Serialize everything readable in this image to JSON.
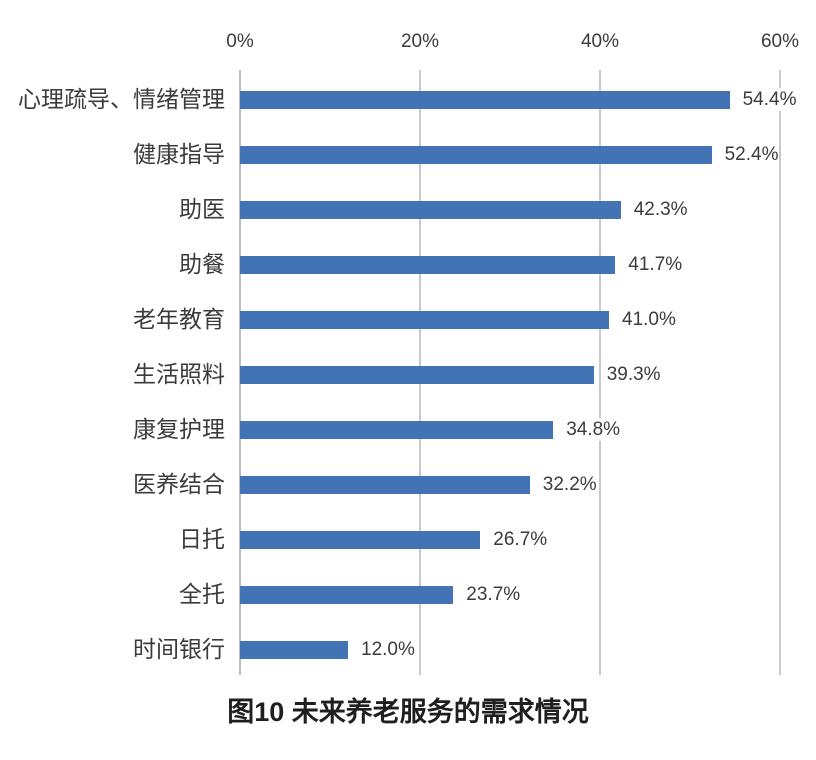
{
  "chart_data": {
    "type": "bar",
    "orientation": "horizontal",
    "title": "图10 未来养老服务的需求情况",
    "categories": [
      "心理疏导、情绪管理",
      "健康指导",
      "助医",
      "助餐",
      "老年教育",
      "生活照料",
      "康复护理",
      "医养结合",
      "日托",
      "全托",
      "时间银行"
    ],
    "values": [
      54.4,
      52.4,
      42.3,
      41.7,
      41.0,
      39.3,
      34.8,
      32.2,
      26.7,
      23.7,
      12.0
    ],
    "value_labels": [
      "54.4%",
      "52.4%",
      "42.3%",
      "41.7%",
      "41.0%",
      "39.3%",
      "34.8%",
      "32.2%",
      "26.7%",
      "23.7%",
      "12.0%"
    ],
    "x_axis": {
      "position": "top",
      "ticks": [
        "0%",
        "20%",
        "40%",
        "60%"
      ],
      "tick_values": [
        0,
        20,
        40,
        60
      ],
      "min": 0,
      "max": 60,
      "grid": true
    },
    "legend": null,
    "colors": {
      "bar": "#4273b4",
      "gridline": "#c9c9c9",
      "axis_line": "#bdbdbd",
      "label": "#3b3b3b",
      "title": "#1f1f1f",
      "background": "#ffffff"
    }
  }
}
